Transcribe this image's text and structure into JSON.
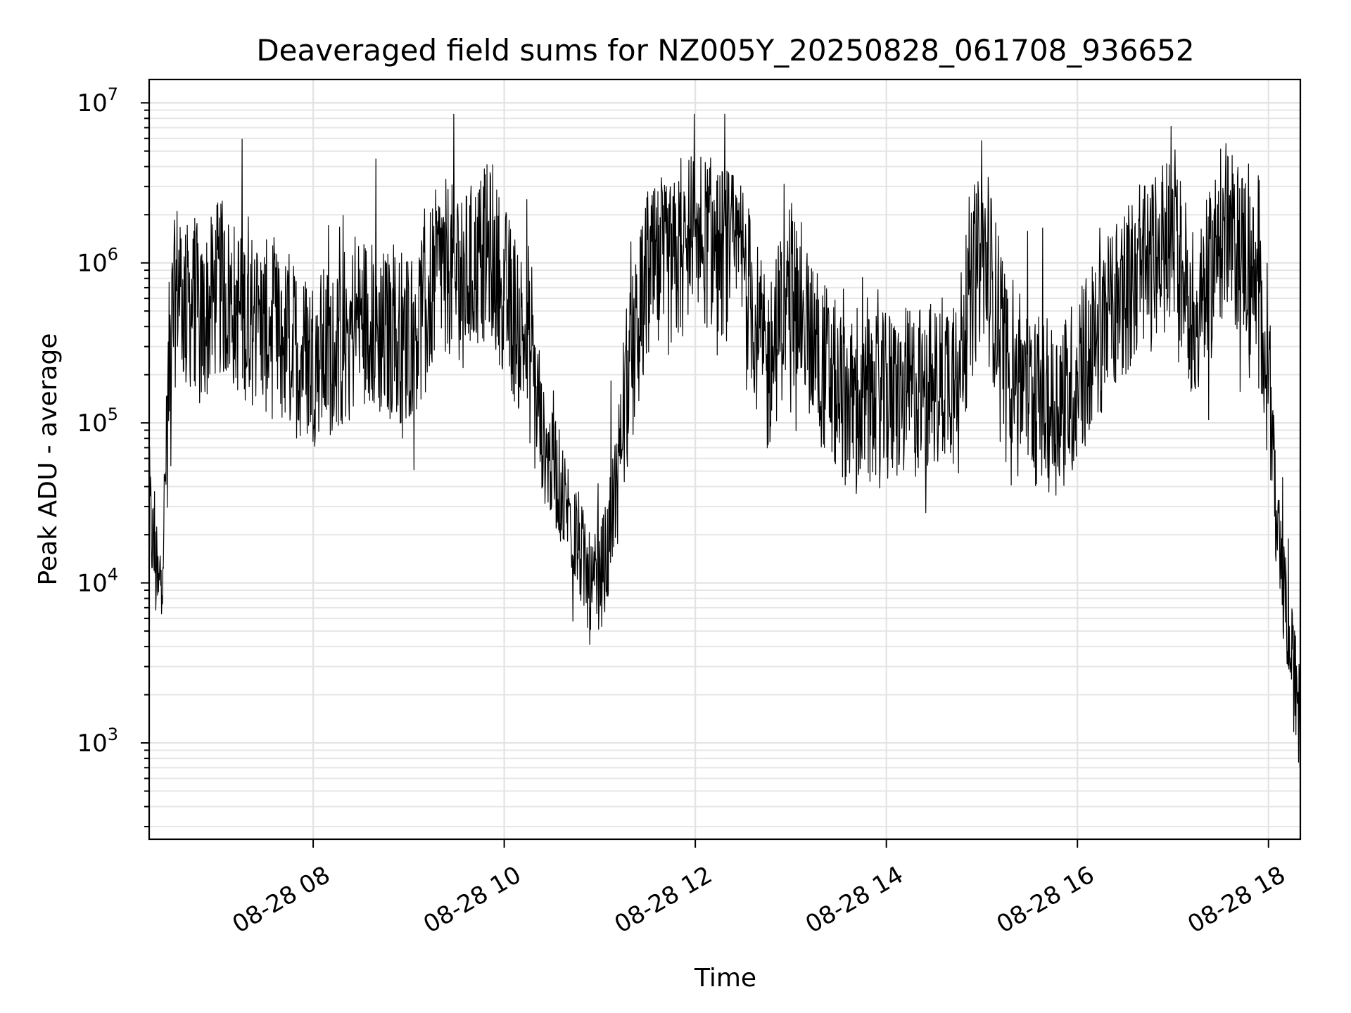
{
  "chart_data": {
    "type": "line",
    "title": "Deaveraged field sums for NZ005Y_20250828_061708_936652",
    "xlabel": "Time",
    "ylabel": "Peak ADU - average",
    "yscale": "log",
    "ylim": [
      250,
      14000000
    ],
    "xlim": [
      "2025-08-28 06:17",
      "2025-08-28 18:20"
    ],
    "grid": true,
    "legend": "none",
    "line_color": "#000000",
    "x_ticks": [
      {
        "label": "08-28 08",
        "time": "2025-08-28 08:00"
      },
      {
        "label": "08-28 10",
        "time": "2025-08-28 10:00"
      },
      {
        "label": "08-28 12",
        "time": "2025-08-28 12:00"
      },
      {
        "label": "08-28 14",
        "time": "2025-08-28 14:00"
      },
      {
        "label": "08-28 16",
        "time": "2025-08-28 16:00"
      },
      {
        "label": "08-28 18",
        "time": "2025-08-28 18:00"
      }
    ],
    "y_ticks": [
      {
        "base": "10",
        "exp": "3",
        "value": 1000
      },
      {
        "base": "10",
        "exp": "4",
        "value": 10000
      },
      {
        "base": "10",
        "exp": "5",
        "value": 100000
      },
      {
        "base": "10",
        "exp": "6",
        "value": 1000000
      },
      {
        "base": "10",
        "exp": "7",
        "value": 10000000
      }
    ],
    "series": [
      {
        "x": [
          "2025-08-28 06:17",
          "2025-08-28 06:20",
          "2025-08-28 06:23",
          "2025-08-28 06:26",
          "2025-08-28 06:30",
          "2025-08-28 06:35",
          "2025-08-28 06:40",
          "2025-08-28 06:45",
          "2025-08-28 06:50",
          "2025-08-28 07:00",
          "2025-08-28 07:15",
          "2025-08-28 07:30",
          "2025-08-28 07:45",
          "2025-08-28 08:00",
          "2025-08-28 08:15",
          "2025-08-28 08:30",
          "2025-08-28 08:45",
          "2025-08-28 09:00",
          "2025-08-28 09:10",
          "2025-08-28 09:20",
          "2025-08-28 09:35",
          "2025-08-28 09:50",
          "2025-08-28 10:05",
          "2025-08-28 10:15",
          "2025-08-28 10:25",
          "2025-08-28 10:35",
          "2025-08-28 10:45",
          "2025-08-28 10:55",
          "2025-08-28 11:05",
          "2025-08-28 11:15",
          "2025-08-28 11:30",
          "2025-08-28 11:45",
          "2025-08-28 12:00",
          "2025-08-28 12:15",
          "2025-08-28 12:30",
          "2025-08-28 12:45",
          "2025-08-28 13:00",
          "2025-08-28 13:15",
          "2025-08-28 13:30",
          "2025-08-28 13:45",
          "2025-08-28 14:00",
          "2025-08-28 14:15",
          "2025-08-28 14:30",
          "2025-08-28 14:45",
          "2025-08-28 15:00",
          "2025-08-28 15:15",
          "2025-08-28 15:30",
          "2025-08-28 15:45",
          "2025-08-28 16:00",
          "2025-08-28 16:15",
          "2025-08-28 16:30",
          "2025-08-28 16:45",
          "2025-08-28 17:00",
          "2025-08-28 17:15",
          "2025-08-28 17:30",
          "2025-08-28 17:45",
          "2025-08-28 18:00",
          "2025-08-28 18:05",
          "2025-08-28 18:10",
          "2025-08-28 18:15",
          "2025-08-28 18:20"
        ],
        "y": [
          30000,
          15000,
          8000,
          20000,
          300000,
          800000,
          500000,
          600000,
          400000,
          700000,
          500000,
          400000,
          300000,
          250000,
          300000,
          450000,
          350000,
          350000,
          500000,
          1000000,
          800000,
          1200000,
          500000,
          300000,
          70000,
          40000,
          20000,
          8000,
          15000,
          120000,
          800000,
          900000,
          1500000,
          1200000,
          1000000,
          200000,
          800000,
          300000,
          150000,
          130000,
          140000,
          150000,
          170000,
          250000,
          1200000,
          300000,
          150000,
          120000,
          180000,
          400000,
          700000,
          900000,
          1500000,
          400000,
          1500000,
          1200000,
          300000,
          20000,
          8000,
          3000,
          1300
        ]
      }
    ]
  }
}
